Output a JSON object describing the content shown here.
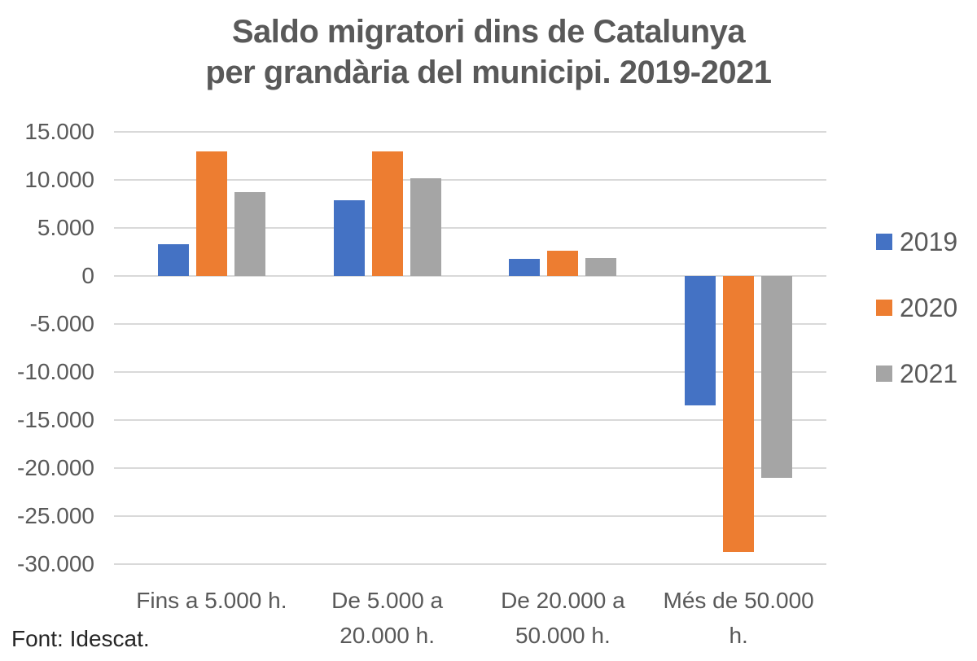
{
  "title": {
    "line1": "Saldo migratori dins de Catalunya",
    "line2": "per grandària del municipi. 2019-2021"
  },
  "footer": {
    "source": "Font: Idescat."
  },
  "legend": {
    "position": "right",
    "items": [
      {
        "label": "2019",
        "color": "#4472C4"
      },
      {
        "label": "2020",
        "color": "#ED7D31"
      },
      {
        "label": "2021",
        "color": "#A5A5A5"
      }
    ]
  },
  "axes": {
    "ytick_values": [
      15000,
      10000,
      5000,
      0,
      -5000,
      -10000,
      -15000,
      -20000,
      -25000,
      -30000
    ],
    "ytick_labels": [
      "15.000",
      "10.000",
      "5.000",
      "0",
      "-5.000",
      "-10.000",
      "-15.000",
      "-20.000",
      "-25.000",
      "-30.000"
    ]
  },
  "chart_data": {
    "type": "bar",
    "title": "Saldo migratori dins de Catalunya per grandària del municipi. 2019-2021",
    "categories": [
      "Fins a 5.000 h.",
      "De 5.000 a 20.000 h.",
      "De 20.000 a 50.000 h.",
      "Més de 50.000 h."
    ],
    "series": [
      {
        "name": "2019",
        "color": "#4472C4",
        "values": [
          3300,
          7900,
          1800,
          -13500
        ]
      },
      {
        "name": "2020",
        "color": "#ED7D31",
        "values": [
          13000,
          13000,
          2600,
          -28700
        ]
      },
      {
        "name": "2021",
        "color": "#A5A5A5",
        "values": [
          8700,
          10200,
          1900,
          -21000
        ]
      }
    ],
    "xlabel": "",
    "ylabel": "",
    "ylim": [
      -30000,
      15000
    ],
    "ytick_step": 5000,
    "grid": true,
    "legend_position": "right",
    "source": "Font: Idescat."
  },
  "colors": {
    "background": "#FFFFFF",
    "title_text": "#595959",
    "axis_text": "#595959",
    "gridline": "#D9D9D9",
    "source_text": "#262626"
  }
}
